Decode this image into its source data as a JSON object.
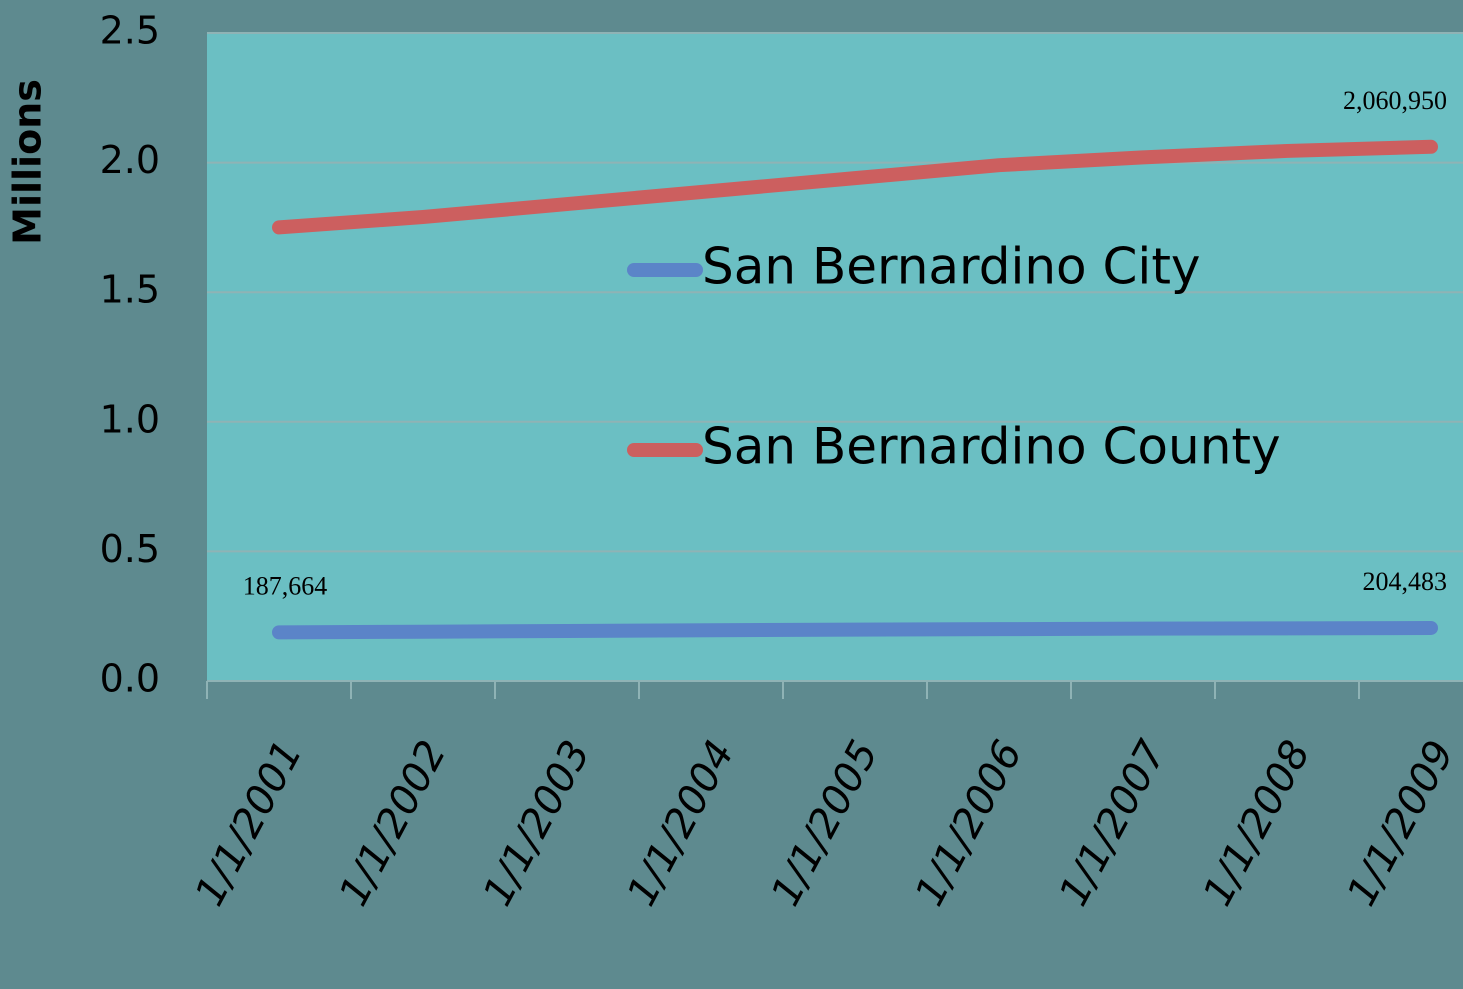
{
  "chart_data": {
    "type": "line",
    "y_label": "Millions",
    "categories": [
      "1/1/2001",
      "1/1/2002",
      "1/1/2003",
      "1/1/2004",
      "1/1/2005",
      "1/1/2006",
      "1/1/2007",
      "1/1/2008",
      "1/1/2009"
    ],
    "series": [
      {
        "name": "San Bernardino City",
        "color": "#5b84c8",
        "values": [
          0.187664,
          0.19,
          0.193,
          0.196,
          0.198,
          0.2,
          0.202,
          0.203,
          0.204483
        ],
        "value_labels": [
          "187,664",
          null,
          null,
          null,
          null,
          null,
          null,
          null,
          "204,483"
        ]
      },
      {
        "name": "San Bernardino County",
        "color": "#cc5f5f",
        "values": [
          1.75,
          1.79,
          1.84,
          1.89,
          1.94,
          1.99,
          2.02,
          2.045,
          2.06095
        ],
        "value_labels": [
          null,
          null,
          null,
          null,
          null,
          null,
          null,
          null,
          "2,060,950"
        ]
      }
    ],
    "ylim": [
      0,
      2.5
    ],
    "yticks": [
      {
        "value": 0,
        "label": "0.0"
      },
      0.5,
      {
        "value": 1,
        "label": "1.0"
      },
      1.5,
      {
        "value": 2,
        "label": "2.0"
      },
      2.5
    ],
    "grid": true
  }
}
